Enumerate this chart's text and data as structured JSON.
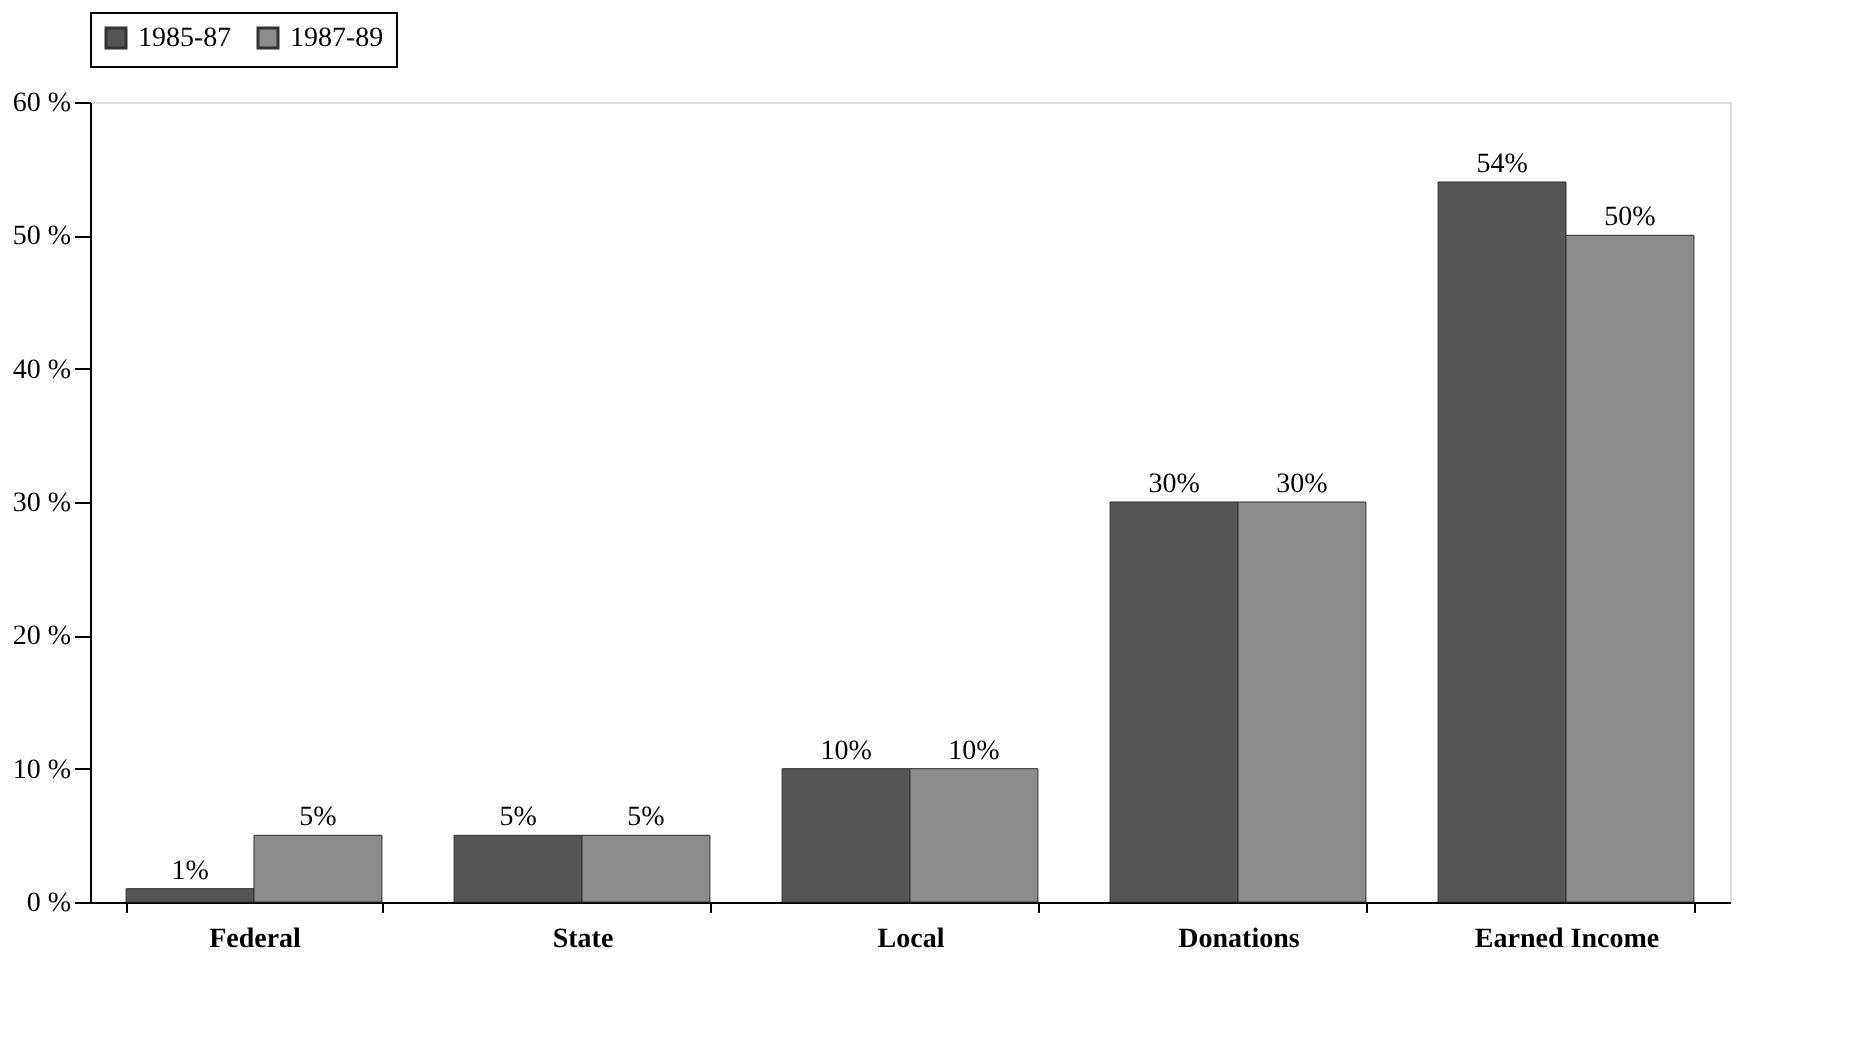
{
  "chart_data": {
    "type": "bar",
    "categories": [
      "Federal",
      "State",
      "Local",
      "Donations",
      "Earned Income"
    ],
    "series": [
      {
        "name": "1985-87",
        "color": "#555555",
        "values": [
          1,
          5,
          10,
          30,
          54
        ],
        "value_labels": [
          "1%",
          "5%",
          "10%",
          "30%",
          "54%"
        ]
      },
      {
        "name": "1987-89",
        "color": "#8c8c8c",
        "values": [
          5,
          5,
          10,
          30,
          50
        ],
        "value_labels": [
          "5%",
          "5%",
          "10%",
          "30%",
          "50%"
        ]
      }
    ],
    "ylim": [
      0,
      60
    ],
    "yticks": [
      {
        "value": 0,
        "label": "0 %"
      },
      {
        "value": 10,
        "label": "10 %"
      },
      {
        "value": 20,
        "label": "20 %"
      },
      {
        "value": 30,
        "label": "30 %"
      },
      {
        "value": 40,
        "label": "40 %"
      },
      {
        "value": 50,
        "label": "50 %"
      },
      {
        "value": 60,
        "label": "60 %"
      }
    ],
    "grid": false,
    "legend": "top"
  }
}
